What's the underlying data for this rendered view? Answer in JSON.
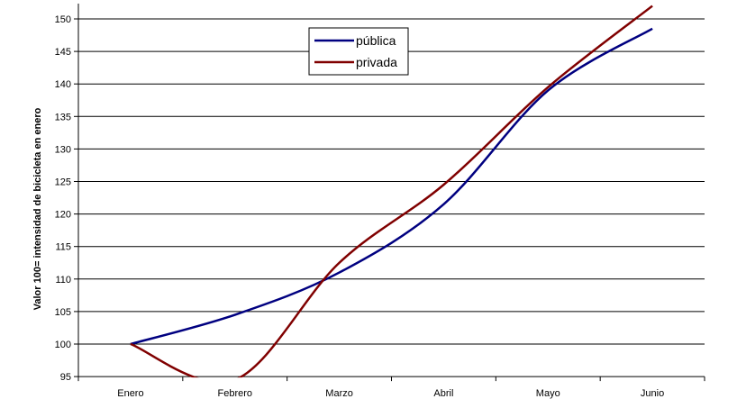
{
  "chart_data": {
    "type": "line",
    "title": "",
    "xlabel": "",
    "ylabel": "Valor 100= intensidad de bicicleta en enero",
    "categories": [
      "Enero",
      "Febrero",
      "Marzo",
      "Abril",
      "Mayo",
      "Junio"
    ],
    "ylim": [
      95,
      150
    ],
    "yticks": [
      95,
      100,
      105,
      110,
      115,
      120,
      125,
      130,
      135,
      140,
      145,
      150
    ],
    "grid": true,
    "legend": "top-center",
    "series": [
      {
        "name": "pública",
        "color": "#000080",
        "values": [
          100,
          104.5,
          111,
          121.5,
          139,
          148.5
        ]
      },
      {
        "name": "privada",
        "color": "#800000",
        "values": [
          100,
          94.5,
          112.5,
          124.5,
          139.5,
          152
        ]
      }
    ]
  }
}
